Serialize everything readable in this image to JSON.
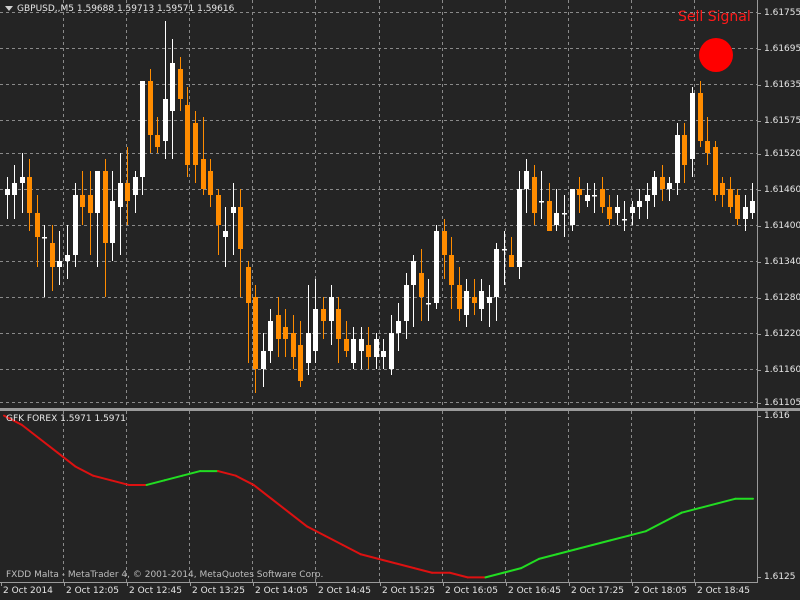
{
  "window": {
    "symbol_header": "GBPUSD,,M5  1.59688 1.59713 1.59571 1.59616",
    "indicator_header": "GFK FOREX 1.5971 1.5971",
    "footer": "FXDD Malta - MetaTrader 4, © 2001-2014, MetaQuotes Software Corp.",
    "signal_text": "Sell Signal"
  },
  "colors": {
    "background": "#242424",
    "grid": "#8a8a8a",
    "bull_candle": "#ffffff",
    "bear_candle": "#ff8c00",
    "signal": "#ff0000",
    "indicator_up": "#22dd22",
    "indicator_down": "#dd1111"
  },
  "chart_data": [
    {
      "type": "candlestick",
      "title": "GBPUSD,,M5",
      "y_ticks": [
        "1.61755",
        "1.61695",
        "1.61635",
        "1.61575",
        "1.61520",
        "1.61460",
        "1.61400",
        "1.61340",
        "1.61280",
        "1.61220",
        "1.61160",
        "1.61105"
      ],
      "ylim": [
        1.61095,
        1.61775
      ],
      "x_ticks": [
        "2 Oct 2014",
        "2 Oct 12:05",
        "2 Oct 12:45",
        "2 Oct 13:25",
        "2 Oct 14:05",
        "2 Oct 14:45",
        "2 Oct 15:25",
        "2 Oct 16:05",
        "2 Oct 16:45",
        "2 Oct 17:25",
        "2 Oct 18:05",
        "2 Oct 18:45"
      ],
      "grid": true,
      "candles": [
        {
          "o": 1.6145,
          "h": 1.6148,
          "l": 1.6141,
          "c": 1.6146
        },
        {
          "o": 1.6145,
          "h": 1.615,
          "l": 1.6141,
          "c": 1.6147
        },
        {
          "o": 1.6147,
          "h": 1.6152,
          "l": 1.6142,
          "c": 1.6148
        },
        {
          "o": 1.6148,
          "h": 1.6151,
          "l": 1.6139,
          "c": 1.6142
        },
        {
          "o": 1.6142,
          "h": 1.6145,
          "l": 1.6133,
          "c": 1.6138
        },
        {
          "o": 1.6138,
          "h": 1.614,
          "l": 1.6128,
          "c": 1.6138
        },
        {
          "o": 1.6137,
          "h": 1.614,
          "l": 1.6129,
          "c": 1.6133
        },
        {
          "o": 1.6133,
          "h": 1.6139,
          "l": 1.613,
          "c": 1.6134
        },
        {
          "o": 1.6134,
          "h": 1.614,
          "l": 1.6131,
          "c": 1.6135
        },
        {
          "o": 1.6135,
          "h": 1.6147,
          "l": 1.6133,
          "c": 1.6145
        },
        {
          "o": 1.6145,
          "h": 1.6149,
          "l": 1.614,
          "c": 1.6143
        },
        {
          "o": 1.6145,
          "h": 1.6149,
          "l": 1.6135,
          "c": 1.6142
        },
        {
          "o": 1.6142,
          "h": 1.6149,
          "l": 1.6133,
          "c": 1.6149
        },
        {
          "o": 1.6149,
          "h": 1.6151,
          "l": 1.6128,
          "c": 1.6137
        },
        {
          "o": 1.6137,
          "h": 1.6149,
          "l": 1.6134,
          "c": 1.6144
        },
        {
          "o": 1.6143,
          "h": 1.6152,
          "l": 1.6135,
          "c": 1.6147
        },
        {
          "o": 1.6147,
          "h": 1.6153,
          "l": 1.614,
          "c": 1.6144
        },
        {
          "o": 1.6145,
          "h": 1.6149,
          "l": 1.6142,
          "c": 1.6148
        },
        {
          "o": 1.6148,
          "h": 1.6164,
          "l": 1.6145,
          "c": 1.6164
        },
        {
          "o": 1.6164,
          "h": 1.6166,
          "l": 1.6152,
          "c": 1.6155
        },
        {
          "o": 1.6155,
          "h": 1.6158,
          "l": 1.6152,
          "c": 1.6153
        },
        {
          "o": 1.6154,
          "h": 1.6174,
          "l": 1.6151,
          "c": 1.6161
        },
        {
          "o": 1.6159,
          "h": 1.6171,
          "l": 1.6151,
          "c": 1.6167
        },
        {
          "o": 1.6166,
          "h": 1.6168,
          "l": 1.6159,
          "c": 1.6161
        },
        {
          "o": 1.616,
          "h": 1.6163,
          "l": 1.6148,
          "c": 1.615
        },
        {
          "o": 1.6157,
          "h": 1.6159,
          "l": 1.6147,
          "c": 1.615
        },
        {
          "o": 1.6151,
          "h": 1.6158,
          "l": 1.6145,
          "c": 1.6146
        },
        {
          "o": 1.6149,
          "h": 1.6151,
          "l": 1.6143,
          "c": 1.6145
        },
        {
          "o": 1.6145,
          "h": 1.6146,
          "l": 1.6135,
          "c": 1.614
        },
        {
          "o": 1.6138,
          "h": 1.6143,
          "l": 1.6133,
          "c": 1.6139
        },
        {
          "o": 1.6142,
          "h": 1.6147,
          "l": 1.6135,
          "c": 1.6143
        },
        {
          "o": 1.6143,
          "h": 1.6146,
          "l": 1.6128,
          "c": 1.6136
        },
        {
          "o": 1.6133,
          "h": 1.6134,
          "l": 1.6117,
          "c": 1.6127
        },
        {
          "o": 1.6128,
          "h": 1.613,
          "l": 1.6112,
          "c": 1.6116
        },
        {
          "o": 1.6116,
          "h": 1.6122,
          "l": 1.6113,
          "c": 1.6119
        },
        {
          "o": 1.6119,
          "h": 1.6126,
          "l": 1.6117,
          "c": 1.6124
        },
        {
          "o": 1.6125,
          "h": 1.6128,
          "l": 1.6118,
          "c": 1.6121
        },
        {
          "o": 1.6123,
          "h": 1.6126,
          "l": 1.6118,
          "c": 1.6121
        },
        {
          "o": 1.6122,
          "h": 1.6125,
          "l": 1.6116,
          "c": 1.6118
        },
        {
          "o": 1.612,
          "h": 1.6124,
          "l": 1.6113,
          "c": 1.6114
        },
        {
          "o": 1.6117,
          "h": 1.613,
          "l": 1.6115,
          "c": 1.6122
        },
        {
          "o": 1.6119,
          "h": 1.6131,
          "l": 1.6117,
          "c": 1.6126
        },
        {
          "o": 1.6126,
          "h": 1.6128,
          "l": 1.6121,
          "c": 1.6124
        },
        {
          "o": 1.6124,
          "h": 1.613,
          "l": 1.612,
          "c": 1.6128
        },
        {
          "o": 1.6126,
          "h": 1.6128,
          "l": 1.6117,
          "c": 1.6121
        },
        {
          "o": 1.6121,
          "h": 1.6124,
          "l": 1.6118,
          "c": 1.6119
        },
        {
          "o": 1.6117,
          "h": 1.6123,
          "l": 1.6116,
          "c": 1.6121
        },
        {
          "o": 1.6119,
          "h": 1.6123,
          "l": 1.6116,
          "c": 1.6121
        },
        {
          "o": 1.612,
          "h": 1.6123,
          "l": 1.6116,
          "c": 1.6118
        },
        {
          "o": 1.6118,
          "h": 1.6122,
          "l": 1.6116,
          "c": 1.6121
        },
        {
          "o": 1.6118,
          "h": 1.6121,
          "l": 1.6116,
          "c": 1.6119
        },
        {
          "o": 1.6116,
          "h": 1.6125,
          "l": 1.6115,
          "c": 1.6122
        },
        {
          "o": 1.6122,
          "h": 1.6127,
          "l": 1.6119,
          "c": 1.6124
        },
        {
          "o": 1.6124,
          "h": 1.6132,
          "l": 1.6121,
          "c": 1.613
        },
        {
          "o": 1.613,
          "h": 1.6135,
          "l": 1.6123,
          "c": 1.6134
        },
        {
          "o": 1.6132,
          "h": 1.6136,
          "l": 1.6124,
          "c": 1.6128
        },
        {
          "o": 1.6127,
          "h": 1.6131,
          "l": 1.6124,
          "c": 1.6127
        },
        {
          "o": 1.6127,
          "h": 1.614,
          "l": 1.6126,
          "c": 1.6139
        },
        {
          "o": 1.6139,
          "h": 1.6141,
          "l": 1.6131,
          "c": 1.6135
        },
        {
          "o": 1.6135,
          "h": 1.6138,
          "l": 1.6126,
          "c": 1.613
        },
        {
          "o": 1.613,
          "h": 1.6133,
          "l": 1.6124,
          "c": 1.6126
        },
        {
          "o": 1.6125,
          "h": 1.6131,
          "l": 1.6123,
          "c": 1.6129
        },
        {
          "o": 1.6128,
          "h": 1.6131,
          "l": 1.6125,
          "c": 1.6127
        },
        {
          "o": 1.6126,
          "h": 1.6131,
          "l": 1.6124,
          "c": 1.6129
        },
        {
          "o": 1.6127,
          "h": 1.613,
          "l": 1.6123,
          "c": 1.6128
        },
        {
          "o": 1.6128,
          "h": 1.6137,
          "l": 1.6124,
          "c": 1.6136
        },
        {
          "o": 1.6136,
          "h": 1.6139,
          "l": 1.613,
          "c": 1.6136
        },
        {
          "o": 1.6135,
          "h": 1.6138,
          "l": 1.6133,
          "c": 1.6133
        },
        {
          "o": 1.6133,
          "h": 1.6149,
          "l": 1.6131,
          "c": 1.6146
        },
        {
          "o": 1.6146,
          "h": 1.6151,
          "l": 1.6142,
          "c": 1.6149
        },
        {
          "o": 1.6148,
          "h": 1.615,
          "l": 1.614,
          "c": 1.6142
        },
        {
          "o": 1.6144,
          "h": 1.6149,
          "l": 1.6141,
          "c": 1.6144
        },
        {
          "o": 1.6144,
          "h": 1.6147,
          "l": 1.6139,
          "c": 1.6139
        },
        {
          "o": 1.614,
          "h": 1.6146,
          "l": 1.6139,
          "c": 1.6142
        },
        {
          "o": 1.6142,
          "h": 1.6145,
          "l": 1.6138,
          "c": 1.6142
        },
        {
          "o": 1.614,
          "h": 1.6146,
          "l": 1.6139,
          "c": 1.6146
        },
        {
          "o": 1.6146,
          "h": 1.6148,
          "l": 1.6142,
          "c": 1.6145
        },
        {
          "o": 1.6144,
          "h": 1.6147,
          "l": 1.6143,
          "c": 1.6145
        },
        {
          "o": 1.6145,
          "h": 1.6147,
          "l": 1.6142,
          "c": 1.6145
        },
        {
          "o": 1.6146,
          "h": 1.6148,
          "l": 1.6142,
          "c": 1.6143
        },
        {
          "o": 1.6143,
          "h": 1.6145,
          "l": 1.614,
          "c": 1.6141
        },
        {
          "o": 1.6142,
          "h": 1.6145,
          "l": 1.614,
          "c": 1.6143
        },
        {
          "o": 1.6141,
          "h": 1.6144,
          "l": 1.6139,
          "c": 1.6141
        },
        {
          "o": 1.6142,
          "h": 1.6144,
          "l": 1.614,
          "c": 1.6143
        },
        {
          "o": 1.6143,
          "h": 1.6146,
          "l": 1.6141,
          "c": 1.6144
        },
        {
          "o": 1.6144,
          "h": 1.6147,
          "l": 1.6141,
          "c": 1.6145
        },
        {
          "o": 1.6145,
          "h": 1.6149,
          "l": 1.6143,
          "c": 1.6148
        },
        {
          "o": 1.6148,
          "h": 1.615,
          "l": 1.6144,
          "c": 1.6146
        },
        {
          "o": 1.6146,
          "h": 1.6148,
          "l": 1.6144,
          "c": 1.6147
        },
        {
          "o": 1.6147,
          "h": 1.6157,
          "l": 1.6145,
          "c": 1.6155
        },
        {
          "o": 1.6155,
          "h": 1.6157,
          "l": 1.6147,
          "c": 1.615
        },
        {
          "o": 1.6151,
          "h": 1.6163,
          "l": 1.6148,
          "c": 1.6162
        },
        {
          "o": 1.6162,
          "h": 1.6164,
          "l": 1.6153,
          "c": 1.6154
        },
        {
          "o": 1.6154,
          "h": 1.6158,
          "l": 1.615,
          "c": 1.6152
        },
        {
          "o": 1.6153,
          "h": 1.6154,
          "l": 1.6144,
          "c": 1.6145
        },
        {
          "o": 1.6147,
          "h": 1.6148,
          "l": 1.6143,
          "c": 1.6145
        },
        {
          "o": 1.6146,
          "h": 1.6148,
          "l": 1.6142,
          "c": 1.6143
        },
        {
          "o": 1.6145,
          "h": 1.6146,
          "l": 1.614,
          "c": 1.6141
        },
        {
          "o": 1.6141,
          "h": 1.6145,
          "l": 1.6139,
          "c": 1.6143
        },
        {
          "o": 1.6142,
          "h": 1.6147,
          "l": 1.6141,
          "c": 1.6144
        }
      ]
    },
    {
      "type": "line",
      "title": "GFK FOREX",
      "y_ticks": [
        "1.616",
        "1.6125"
      ],
      "ylim": [
        1.6124,
        1.6161
      ],
      "series": [
        {
          "name": "GFK FOREX",
          "values": [
            1.616,
            1.6158,
            1.6155,
            1.6152,
            1.6149,
            1.6147,
            1.6146,
            1.6145,
            1.6145,
            1.6146,
            1.6147,
            1.6148,
            1.6148,
            1.6147,
            1.6145,
            1.6142,
            1.6139,
            1.6136,
            1.6134,
            1.6132,
            1.613,
            1.6129,
            1.6128,
            1.6127,
            1.6126,
            1.6126,
            1.6125,
            1.6125,
            1.6126,
            1.6127,
            1.6129,
            1.613,
            1.6131,
            1.6132,
            1.6133,
            1.6134,
            1.6135,
            1.6137,
            1.6139,
            1.614,
            1.6141,
            1.6142,
            1.6142
          ]
        }
      ]
    }
  ]
}
